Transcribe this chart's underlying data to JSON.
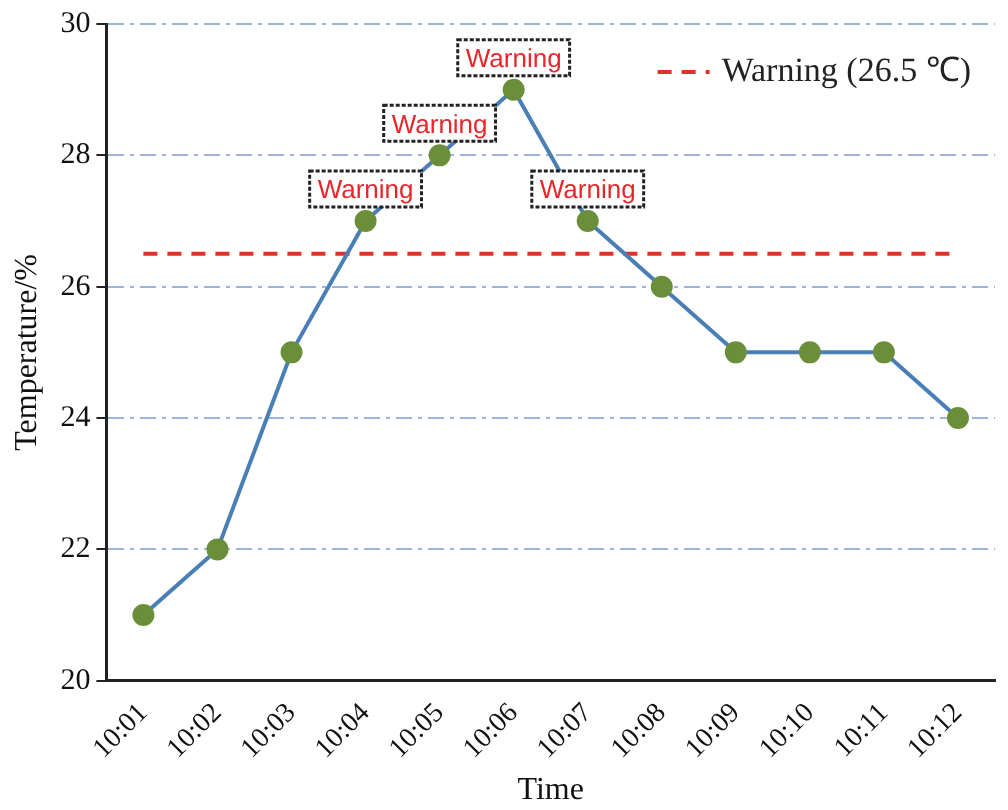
{
  "chart_data": {
    "type": "line",
    "xlabel": "Time",
    "ylabel": "Temperature/%",
    "categories": [
      "10:01",
      "10:02",
      "10:03",
      "10:04",
      "10:05",
      "10:06",
      "10:07",
      "10:08",
      "10:09",
      "10:10",
      "10:11",
      "10:12"
    ],
    "series": [
      {
        "color": "#4a7fb5",
        "colors": [
          "#6b8e3a",
          "#6b8e3a",
          "#6b8e3a",
          "#6b8e3a",
          "#6b8e3a",
          "#6b8e3a",
          "#6b8e3a",
          "#6b8e3a",
          "#6b8e3a",
          "#6b8e3a",
          "#6b8e3a",
          "#6b8e3a"
        ],
        "values": [
          21,
          22,
          25,
          27,
          28,
          29,
          27,
          26,
          25,
          25,
          25,
          24
        ]
      }
    ],
    "ylim": [
      20,
      30
    ],
    "yticks": [
      20,
      22,
      24,
      26,
      28,
      30
    ],
    "grid": "y",
    "legend": "top right",
    "marker": "circle",
    "line_style": "solid",
    "ref_lines": [
      {
        "axis": "y",
        "value": 26.5,
        "label": "Warning (26.5 ℃)",
        "color": "#e0302a",
        "line_style": "dashed"
      }
    ],
    "annotations": [
      {
        "text": "Warning",
        "x": "10:04",
        "y": 27
      },
      {
        "text": "Warning",
        "x": "10:05",
        "y": 28
      },
      {
        "text": "Warning",
        "x": "10:06",
        "y": 29
      },
      {
        "text": "Warning",
        "x": "10:07",
        "y": 27
      }
    ]
  }
}
